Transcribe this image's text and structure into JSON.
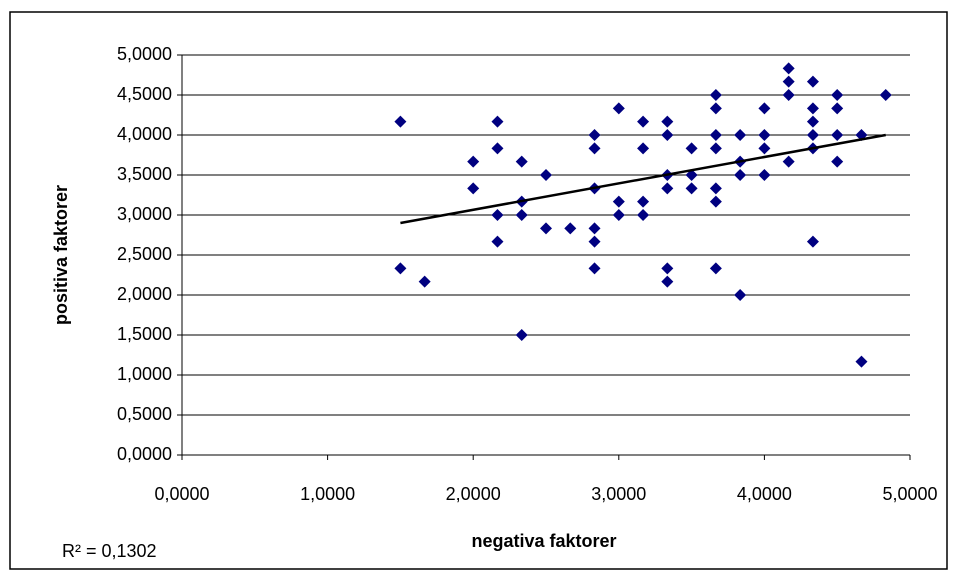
{
  "chart_data": {
    "type": "scatter",
    "xlabel": "negativa faktorer",
    "ylabel": "positiva faktorer",
    "annotation": "R² = 0,1302",
    "series": [
      {
        "color": "#000080",
        "x": [
          1.5,
          1.5,
          1.6667,
          2.0,
          2.0,
          2.1667,
          2.1667,
          2.1667,
          2.1667,
          2.3333,
          2.3333,
          2.3333,
          2.3333,
          2.5,
          2.5,
          2.6667,
          2.8333,
          2.8333,
          2.8333,
          2.8333,
          2.8333,
          2.8333,
          3.0,
          3.0,
          3.0,
          3.1667,
          3.1667,
          3.1667,
          3.1667,
          3.3333,
          3.3333,
          3.3333,
          3.3333,
          3.3333,
          3.3333,
          3.5,
          3.5,
          3.5,
          3.6667,
          3.6667,
          3.6667,
          3.6667,
          3.6667,
          3.6667,
          3.6667,
          3.8333,
          3.8333,
          3.8333,
          3.8333,
          4.0,
          4.0,
          4.0,
          4.0,
          4.1667,
          4.1667,
          4.1667,
          4.1667,
          4.3333,
          4.3333,
          4.3333,
          4.3333,
          4.3333,
          4.3333,
          4.5,
          4.5,
          4.5,
          4.5,
          4.6667,
          4.6667,
          4.8333
        ],
        "values": [
          4.1667,
          2.3333,
          2.1667,
          3.6667,
          3.3333,
          4.1667,
          3.8333,
          3.0,
          2.6667,
          3.6667,
          3.1667,
          3.0,
          1.5,
          3.5,
          2.8333,
          2.8333,
          4.0,
          3.8333,
          3.3333,
          2.8333,
          2.6667,
          2.3333,
          4.3333,
          3.1667,
          3.0,
          4.1667,
          3.8333,
          3.1667,
          3.0,
          4.1667,
          4.0,
          3.5,
          3.3333,
          2.3333,
          2.1667,
          3.8333,
          3.5,
          3.3333,
          4.5,
          4.3333,
          4.0,
          3.8333,
          3.3333,
          3.1667,
          2.3333,
          4.0,
          3.6667,
          3.5,
          2.0,
          4.3333,
          4.0,
          3.8333,
          3.5,
          4.8333,
          4.6667,
          4.5,
          3.6667,
          4.6667,
          4.3333,
          4.1667,
          4.0,
          3.8333,
          2.6667,
          4.5,
          4.3333,
          4.0,
          3.6667,
          4.0,
          1.1667,
          4.5
        ]
      }
    ],
    "trendline": {
      "color": "#000000",
      "x": [
        1.5,
        4.8333
      ],
      "values": [
        2.9,
        4.0
      ]
    },
    "xlim": [
      0,
      5
    ],
    "ylim": [
      0,
      5
    ],
    "xticks": [
      {
        "value": 0,
        "label": "0,0000"
      },
      {
        "value": 1,
        "label": "1,0000"
      },
      {
        "value": 2,
        "label": "2,0000"
      },
      {
        "value": 3,
        "label": "3,0000"
      },
      {
        "value": 4,
        "label": "4,0000"
      },
      {
        "value": 5,
        "label": "5,0000"
      }
    ],
    "yticks": [
      {
        "value": 0,
        "label": "0,0000"
      },
      {
        "value": 0.5,
        "label": "0,5000"
      },
      {
        "value": 1,
        "label": "1,0000"
      },
      {
        "value": 1.5,
        "label": "1,5000"
      },
      {
        "value": 2,
        "label": "2,0000"
      },
      {
        "value": 2.5,
        "label": "2,5000"
      },
      {
        "value": 3,
        "label": "3,0000"
      },
      {
        "value": 3.5,
        "label": "3,5000"
      },
      {
        "value": 4,
        "label": "4,0000"
      },
      {
        "value": 4.5,
        "label": "4,5000"
      },
      {
        "value": 5,
        "label": "5,0000"
      }
    ],
    "grid": true
  }
}
